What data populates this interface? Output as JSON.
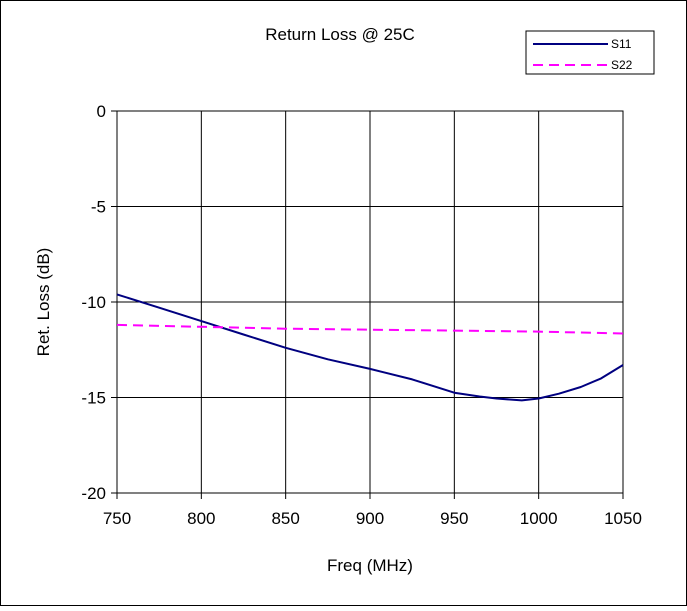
{
  "chart_data": {
    "type": "line",
    "title": "Return Loss @ 25C",
    "xlabel": "Freq (MHz)",
    "ylabel": "Ret. Loss (dB)",
    "xlim": [
      750,
      1050
    ],
    "ylim": [
      -20,
      0
    ],
    "x_ticks": [
      750,
      800,
      850,
      900,
      950,
      1000,
      1050
    ],
    "y_ticks": [
      0,
      -5,
      -10,
      -15,
      -20
    ],
    "grid": true,
    "legend_position": "top-right",
    "series": [
      {
        "name": "S11",
        "color": "#000080",
        "style": "solid",
        "x": [
          750,
          775,
          800,
          825,
          850,
          875,
          900,
          925,
          950,
          965,
          975,
          990,
          1000,
          1012,
          1025,
          1037,
          1050
        ],
        "y": [
          -9.6,
          -10.3,
          -11.0,
          -11.7,
          -12.4,
          -13.0,
          -13.5,
          -14.05,
          -14.75,
          -14.95,
          -15.05,
          -15.15,
          -15.05,
          -14.8,
          -14.45,
          -14.0,
          -13.3
        ]
      },
      {
        "name": "S22",
        "color": "#FF00FF",
        "style": "dashed",
        "x": [
          750,
          800,
          850,
          900,
          950,
          1000,
          1050
        ],
        "y": [
          -11.2,
          -11.3,
          -11.4,
          -11.45,
          -11.5,
          -11.55,
          -11.65
        ]
      }
    ]
  }
}
